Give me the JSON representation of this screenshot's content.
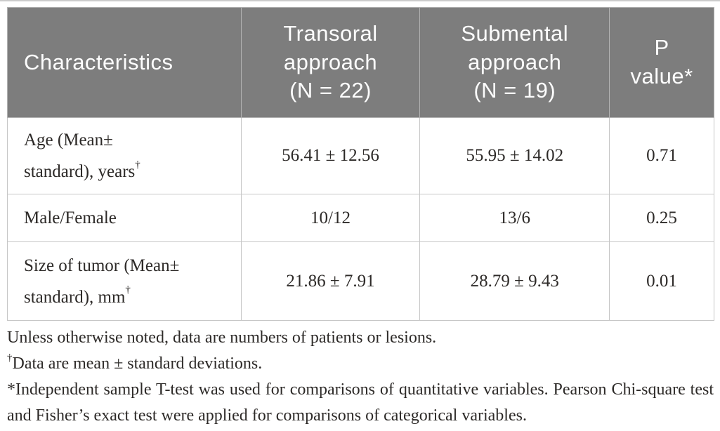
{
  "colors": {
    "header_background": "#7d7d7d",
    "header_text": "#fdfdfd",
    "body_text": "#2d2a28",
    "cell_border": "#c6c6c6",
    "top_rule": "#cccccc",
    "page_background": "#ffffff"
  },
  "table": {
    "headers": [
      {
        "text": "Characteristics"
      },
      {
        "text": "Transoral\napproach\n(N = 22)"
      },
      {
        "text": "Submental\napproach\n(N = 19)"
      },
      {
        "text": "P\nvalue*"
      }
    ],
    "rows": [
      {
        "label": "Age (Mean±\nstandard), years",
        "label_sup": "†",
        "transoral": "56.41 ± 12.56",
        "submental": "55.95 ± 14.02",
        "p_value": "0.71"
      },
      {
        "label": "Male/Female",
        "label_sup": "",
        "transoral": "10/12",
        "submental": "13/6",
        "p_value": "0.25"
      },
      {
        "label": "Size of tumor (Mean±\nstandard), mm",
        "label_sup": "†",
        "transoral": "21.86 ± 7.91",
        "submental": "28.79 ± 9.43",
        "p_value": "0.01"
      }
    ]
  },
  "footnotes": [
    {
      "sup": "",
      "text": "Unless otherwise noted, data are numbers of patients or lesions."
    },
    {
      "sup": "†",
      "text": "Data are mean ± standard deviations."
    },
    {
      "sup": "",
      "text": "*Independent sample T-test was used for comparisons of quantitative variables. Pearson Chi-square test and Fisher’s exact test were applied for comparisons of categorical variables."
    }
  ]
}
